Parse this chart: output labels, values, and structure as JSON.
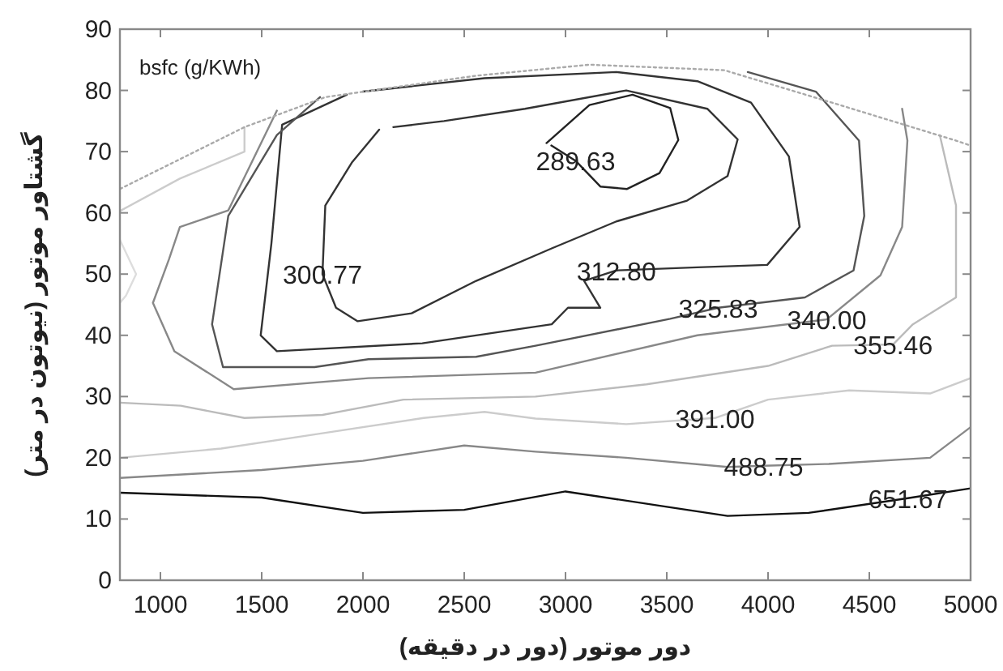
{
  "chart_data": {
    "type": "line",
    "xlabel": "دور موتور (دور در دقیقه)",
    "ylabel": "گشتاور موتور (نیوتون در متر)",
    "xlim": [
      800,
      5000
    ],
    "ylim": [
      0,
      90
    ],
    "xticks": [
      1000,
      1500,
      2000,
      2500,
      3000,
      3500,
      4000,
      4500,
      5000
    ],
    "yticks": [
      0,
      10,
      20,
      30,
      40,
      50,
      60,
      70,
      80,
      90
    ],
    "grid": false,
    "series": [
      {
        "color": "#222222",
        "x": [
          2906,
          3118,
          3331,
          3517,
          3557,
          3464,
          3304,
          3172,
          3050,
          2930
        ],
        "values": [
          71.4,
          77.6,
          79.3,
          77.1,
          71.9,
          66.5,
          63.9,
          64.3,
          68.5,
          71
        ]
      },
      {
        "color": "#333333",
        "x": [
          2080,
          1947,
          1814,
          1800,
          1867,
          1974,
          2240,
          2559,
          2932,
          3251,
          3600,
          3800,
          3850,
          3700,
          3300,
          2800,
          2400,
          2150
        ],
        "values": [
          73.6,
          68.3,
          61.2,
          50,
          44.5,
          42.3,
          43.6,
          48.9,
          54.2,
          58.6,
          62,
          66,
          72,
          77,
          80,
          77,
          75,
          74
        ]
      },
      {
        "color": "#333333",
        "x": [
          1920,
          1601,
          1548,
          1495,
          1575,
          2293,
          2932,
          3012,
          3172,
          3092,
          3251,
          3651,
          3996,
          4156,
          4103,
          3916,
          3651,
          3251,
          2600,
          2000
        ],
        "values": [
          79.3,
          74.4,
          55,
          40,
          37.4,
          38.7,
          41.8,
          44.5,
          44.5,
          48.9,
          50.6,
          51.1,
          51.5,
          57.7,
          69.2,
          78,
          81.5,
          83,
          82,
          79.8
        ]
      },
      {
        "color": "#555555",
        "x": [
          1788,
          1575,
          1335,
          1255,
          1309,
          1761,
          2027,
          2559,
          2852,
          3517,
          3754,
          4182,
          4422,
          4475,
          4449,
          4236,
          3900
        ],
        "values": [
          78.9,
          72.7,
          59.5,
          41.8,
          34.8,
          34.8,
          36.1,
          36.5,
          38.3,
          42.7,
          44.5,
          46.2,
          50.6,
          59.5,
          71.8,
          79.8,
          83
        ]
      },
      {
        "color": "#888888",
        "x": [
          1575,
          1335,
          1096,
          1042,
          963,
          1069,
          1362,
          2027,
          2852,
          3651,
          4290,
          4555,
          4662,
          4688,
          4662
        ],
        "values": [
          76.7,
          60.4,
          57.7,
          52.4,
          45.3,
          37.4,
          31.2,
          33,
          33.9,
          40,
          42.6,
          49.8,
          57.7,
          71.8,
          77
        ]
      },
      {
        "color": "#bbbbbb",
        "x": [
          800,
          1100,
          1415,
          1800,
          2200,
          2852,
          3400,
          4000,
          4316,
          4617,
          4715,
          4928,
          4928,
          4848
        ],
        "values": [
          29,
          28.5,
          26.5,
          27,
          29.5,
          30,
          32,
          35,
          38.3,
          38.5,
          41.8,
          46.2,
          61.2,
          72.7
        ]
      },
      {
        "color": "#cccccc",
        "x": [
          800,
          1300,
          1800,
          2300,
          2600,
          2852,
          3300,
          3738,
          4000,
          4400,
          4800,
          5000
        ],
        "values": [
          20,
          21.5,
          24,
          26.5,
          27.5,
          26.4,
          25.5,
          26.5,
          29.5,
          31,
          30.5,
          33
        ]
      },
      {
        "color": "#888888",
        "x": [
          800,
          1500,
          2000,
          2500,
          2852,
          3300,
          3800,
          3978,
          4300,
          4800,
          5000
        ],
        "values": [
          16.7,
          18,
          19.5,
          22,
          21,
          20,
          18.5,
          18.7,
          19,
          20,
          25
        ]
      },
      {
        "color": "#111111",
        "x": [
          800,
          1500,
          2000,
          2500,
          3000,
          3500,
          3800,
          4200,
          4690,
          5000
        ],
        "values": [
          14.3,
          13.5,
          11,
          11.5,
          14.5,
          12,
          10.5,
          11,
          13.4,
          15
        ]
      },
      {
        "color": "#cccccc",
        "x": [
          1415,
          1415,
          1096,
          800
        ],
        "values": [
          74,
          70,
          65.6,
          60.3
        ]
      },
      {
        "color": "#dddddd",
        "x": [
          800,
          880,
          830,
          800
        ],
        "values": [
          55.6,
          50,
          46.5,
          45.3
        ]
      },
      {
        "color": "#aaaaaa",
        "line_style": "dotted",
        "x": [
          800,
          1415,
          1814,
          2559,
          3118,
          3784,
          4316,
          4928,
          5000
        ],
        "values": [
          63.9,
          74,
          78.9,
          82.4,
          84.2,
          83.3,
          78,
          71.8,
          71
        ]
      }
    ],
    "annotations": [
      "bsfc (g/KWh)",
      {
        "text": "289.63",
        "x": 3050,
        "y": 68.5
      },
      {
        "text": "300.77",
        "x": 1800,
        "y": 50
      },
      {
        "text": "312.80",
        "x": 3251,
        "y": 50.6
      },
      {
        "text": "325.83",
        "x": 3754,
        "y": 44.5
      },
      {
        "text": "340.00",
        "x": 4290,
        "y": 42.6
      },
      {
        "text": "355.46",
        "x": 4617,
        "y": 38.5
      },
      {
        "text": "391.00",
        "x": 3738,
        "y": 26.5
      },
      {
        "text": "488.75",
        "x": 3978,
        "y": 18.7
      },
      {
        "text": "651.67",
        "x": 4690,
        "y": 13.4
      }
    ]
  }
}
